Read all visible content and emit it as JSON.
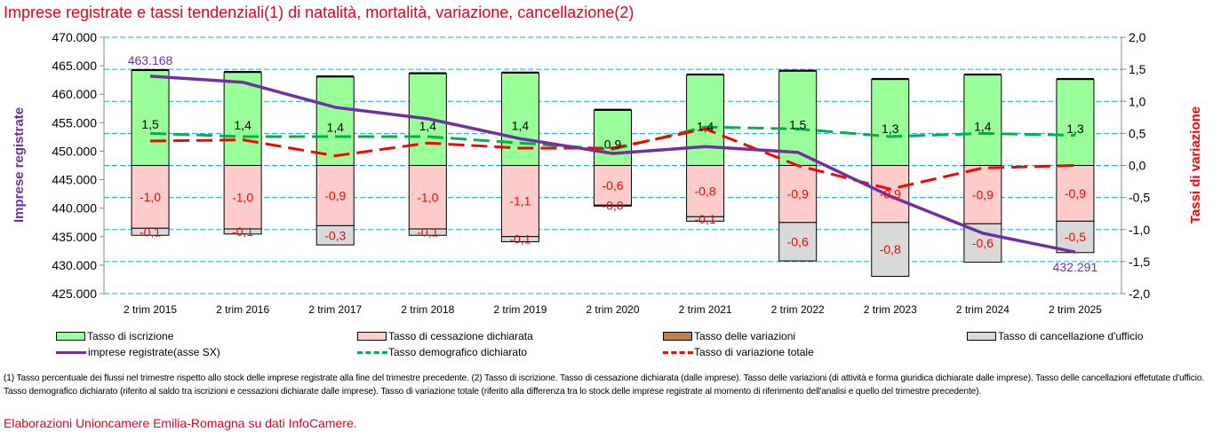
{
  "title": "Imprese registrate e tassi tendenziali(1) di natalità, mortalità, variazione, cancellazione(2)",
  "chart_data": {
    "type": "bar",
    "title": "Imprese registrate e tassi tendenziali(1) di natalità, mortalità, variazione, cancellazione(2)",
    "categories": [
      "2 trim 2015",
      "2 trim 2016",
      "2 trim 2017",
      "2 trim 2018",
      "2 trim 2019",
      "2 trim 2020",
      "2 trim 2021",
      "2 trim 2022",
      "2 trim 2023",
      "2 trim 2024",
      "2 trim 2025"
    ],
    "ylabel_left": "Imprese registrate",
    "ylabel_right": "Tassi di variazione",
    "ylim_left": [
      425000,
      470000
    ],
    "ylim_right": [
      -2.0,
      2.0
    ],
    "yticks_left": [
      "470.000",
      "465.000",
      "460.000",
      "455.000",
      "450.000",
      "445.000",
      "440.000",
      "435.000",
      "430.000",
      "425.000"
    ],
    "yticks_right": [
      "2,0",
      "1,5",
      "1,0",
      "0,5",
      "0,0",
      "-0,5",
      "-1,0",
      "-1,5",
      "-2,0"
    ],
    "grid": true,
    "legend_position": "bottom",
    "series": [
      {
        "name": "Tasso di iscrizione",
        "kind": "stacked-bar",
        "color": "#99ff99",
        "values": [
          1.48,
          1.45,
          1.38,
          1.43,
          1.44,
          0.86,
          1.41,
          1.47,
          1.34,
          1.41,
          1.34
        ],
        "labels": [
          "1,5",
          "1,4",
          "1,4",
          "1,4",
          "1,4",
          "0,9",
          "1,4",
          "1,5",
          "1,3",
          "1,4",
          "1,3"
        ]
      },
      {
        "name": "Tasso delle variazioni",
        "kind": "stacked-bar",
        "color": "#c0804a",
        "values": [
          0.01,
          0.01,
          0.01,
          0.01,
          0.01,
          0.01,
          0.01,
          0.01,
          0.01,
          0.01,
          0.01
        ]
      },
      {
        "name": "Tasso di cessazione dichiarata",
        "kind": "stacked-bar",
        "color": "#ffcccc",
        "values": [
          -0.98,
          -0.99,
          -0.94,
          -0.99,
          -1.11,
          -0.62,
          -0.8,
          -0.89,
          -0.89,
          -0.91,
          -0.87
        ],
        "labels": [
          "-1,0",
          "-1,0",
          "-0,9",
          "-1,0",
          "-1,1",
          "-0,6",
          "-0,8",
          "-0,9",
          "-0,9",
          "-0,9",
          "-0,9"
        ]
      },
      {
        "name": "Tasso di cancellazione d'ufficio",
        "kind": "stacked-bar",
        "color": "#d9d9d9",
        "values": [
          -0.11,
          -0.08,
          -0.3,
          -0.1,
          -0.08,
          -0.01,
          -0.07,
          -0.6,
          -0.84,
          -0.6,
          -0.49
        ],
        "labels": [
          "-0,1",
          "-0,1",
          "-0,3",
          "-0,1",
          "-0,1",
          "-0,0",
          "-0,1",
          "-0,6",
          "-0,8",
          "-0,6",
          "-0,5"
        ]
      },
      {
        "name": "imprese registrate(asse SX)",
        "kind": "line",
        "axis": "left",
        "color": "#7030a0",
        "values": [
          463168,
          462100,
          457700,
          455700,
          452200,
          449600,
          450800,
          449800,
          442100,
          435600,
          432291
        ],
        "point_labels": {
          "first": "463.168",
          "last": "432.291"
        }
      },
      {
        "name": "Tasso demografico dichiarato",
        "kind": "dashed-line",
        "axis": "right",
        "color": "#00b050",
        "values": [
          0.5,
          0.45,
          0.45,
          0.45,
          0.35,
          0.25,
          0.6,
          0.57,
          0.45,
          0.5,
          0.47
        ]
      },
      {
        "name": "Tasso di variazione totale",
        "kind": "dashed-line",
        "axis": "right",
        "color": "#ff0000",
        "values": [
          0.38,
          0.4,
          0.15,
          0.35,
          0.27,
          0.27,
          0.57,
          0.0,
          -0.37,
          -0.04,
          0.0
        ]
      }
    ]
  },
  "legend": [
    {
      "label": "Tasso di iscrizione"
    },
    {
      "label": "Tasso di cessazione dichiarata"
    },
    {
      "label": "Tasso delle variazioni"
    },
    {
      "label": "Tasso di cancellazione d'ufficio"
    },
    {
      "label": "imprese registrate(asse SX)"
    },
    {
      "label": "Tasso demografico dichiarato"
    },
    {
      "label": "Tasso di variazione totale"
    }
  ],
  "footnote": "(1) Tasso percentuale dei flussi nel trimestre rispetto allo stock delle imprese registrate alla fine del trimestre precedente. (2) Tasso di iscrizione. Tasso di cessazione dichiarata (dalle imprese). Tasso delle variazioni (di attività e forma giuridica dichiarate dalle imprese). Tasso delle cancellazioni effetutate d'ufficio. Tasso demografico dichiarato (riferito al saldo tra iscrizioni e cessazioni dichiarate dalle imprese). Tasso di variazione totale (riferito alla differenza tra lo stock delle imprese registrate al momento di riferimento dell'analisi e quello del trimestre precedente).",
  "credit": "Elaborazioni Unioncamere Emilia-Romagna su dati InfoCamere."
}
